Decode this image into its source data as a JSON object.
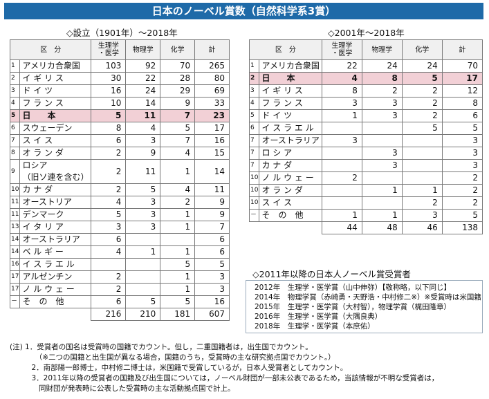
{
  "title": "日本のノーベル賞数（自然科学系3賞）",
  "left": {
    "subtitle": "◇設立（1901年）〜2018年",
    "headers": [
      "区　分",
      "生理学\n・医学",
      "物理学",
      "化学",
      "計"
    ],
    "rows": [
      {
        "rank": "1",
        "name": "アメリカ合衆国",
        "v": [
          "103",
          "92",
          "70",
          "265"
        ]
      },
      {
        "rank": "2",
        "name": "イ ギ リ ス",
        "v": [
          "30",
          "22",
          "28",
          "80"
        ]
      },
      {
        "rank": "3",
        "name": "ド イ ツ",
        "v": [
          "16",
          "24",
          "29",
          "69"
        ]
      },
      {
        "rank": "4",
        "name": "フ ラ ン ス",
        "v": [
          "10",
          "14",
          "9",
          "33"
        ]
      },
      {
        "rank": "5",
        "name": "日　　本",
        "v": [
          "5",
          "11",
          "7",
          "23"
        ],
        "jp": true
      },
      {
        "rank": "6",
        "name": "スウェーデン",
        "v": [
          "8",
          "4",
          "5",
          "17"
        ]
      },
      {
        "rank": "7",
        "name": "ス イ ス",
        "v": [
          "6",
          "3",
          "7",
          "16"
        ]
      },
      {
        "rank": "8",
        "name": "オ ラ ン ダ",
        "v": [
          "2",
          "9",
          "4",
          "15"
        ]
      },
      {
        "rank": "9",
        "name": "ロシア\n（旧ソ連を含む）",
        "v": [
          "2",
          "11",
          "1",
          "14"
        ]
      },
      {
        "rank": "10",
        "name": "カ ナ ダ",
        "v": [
          "2",
          "5",
          "4",
          "11"
        ]
      },
      {
        "rank": "11",
        "name": "オーストリア",
        "v": [
          "4",
          "3",
          "2",
          "9"
        ]
      },
      {
        "rank": "11",
        "name": "デンマーク",
        "v": [
          "5",
          "3",
          "1",
          "9"
        ]
      },
      {
        "rank": "13",
        "name": "イ タ リ ア",
        "v": [
          "3",
          "3",
          "1",
          "7"
        ]
      },
      {
        "rank": "14",
        "name": "オーストラリア",
        "v": [
          "6",
          "",
          "",
          "6"
        ]
      },
      {
        "rank": "14",
        "name": "ベ ル ギ ー",
        "v": [
          "4",
          "1",
          "1",
          "6"
        ]
      },
      {
        "rank": "16",
        "name": "イ ス ラ エ ル",
        "v": [
          "",
          "",
          "5",
          "5"
        ]
      },
      {
        "rank": "17",
        "name": "アルゼンチン",
        "v": [
          "2",
          "",
          "1",
          "3"
        ]
      },
      {
        "rank": "17",
        "name": "ノ ル ウ ェ ー",
        "v": [
          "2",
          "",
          "1",
          "3"
        ]
      },
      {
        "rank": "－",
        "name": "そ　の　他",
        "v": [
          "6",
          "5",
          "5",
          "16"
        ]
      }
    ],
    "totals": [
      "216",
      "210",
      "181",
      "607"
    ]
  },
  "right": {
    "subtitle": "◇2001年〜2018年",
    "headers": [
      "区　分",
      "生理学\n・医学",
      "物理学",
      "化学",
      "計"
    ],
    "rows": [
      {
        "rank": "1",
        "name": "アメリカ合衆国",
        "v": [
          "22",
          "24",
          "24",
          "70"
        ]
      },
      {
        "rank": "2",
        "name": "日　　本",
        "v": [
          "4",
          "8",
          "5",
          "17"
        ],
        "jp": true
      },
      {
        "rank": "3",
        "name": "イ ギ リ ス",
        "v": [
          "8",
          "2",
          "2",
          "12"
        ]
      },
      {
        "rank": "4",
        "name": "フ ラ ン ス",
        "v": [
          "3",
          "3",
          "2",
          "8"
        ]
      },
      {
        "rank": "5",
        "name": "ド イ ツ",
        "v": [
          "1",
          "3",
          "2",
          "6"
        ]
      },
      {
        "rank": "6",
        "name": "イ ス ラ エ ル",
        "v": [
          "",
          "",
          "5",
          "5"
        ]
      },
      {
        "rank": "7",
        "name": "オーストラリア",
        "v": [
          "3",
          "",
          "",
          "3"
        ]
      },
      {
        "rank": "7",
        "name": "ロ シ ア",
        "v": [
          "",
          "3",
          "",
          "3"
        ]
      },
      {
        "rank": "7",
        "name": "カ ナ ダ",
        "v": [
          "",
          "3",
          "",
          "3"
        ]
      },
      {
        "rank": "10",
        "name": "ノ ル ウ ェ ー",
        "v": [
          "2",
          "",
          "",
          "2"
        ]
      },
      {
        "rank": "10",
        "name": "オ ラ ン ダ",
        "v": [
          "",
          "1",
          "1",
          "2"
        ]
      },
      {
        "rank": "10",
        "name": "ス イ ス",
        "v": [
          "",
          "",
          "2",
          "2"
        ]
      },
      {
        "rank": "－",
        "name": "そ　の　他",
        "v": [
          "1",
          "1",
          "3",
          "5"
        ]
      }
    ],
    "totals": [
      "44",
      "48",
      "46",
      "138"
    ]
  },
  "recent": {
    "subtitle": "◇2011年以降の日本人ノーベル賞受賞者",
    "lines": [
      "2012年　生理学・医学賞（山中伸弥）【敬称略，以下同じ】",
      "2014年　物理学賞（赤崎勇・天野浩・中村修二※）※受賞時は米国籍",
      "2015年　生理学・医学賞（大村智），物理学賞（梶田隆章）",
      "2016年　生理学・医学賞（大隅良典）",
      "2018年　生理学・医学賞（本庶佑）"
    ]
  },
  "notes": [
    "(注) 1．受賞者の国名は受賞時の国籍でカウント。但し，二重国籍者は，出生国でカウント。",
    "　　　　（※二つの国籍と出生国が異なる場合，国籍のうち，受賞時の主な研究拠点国でカウント。）",
    "　　　2．南部陽一郎博士，中村修二博士は，米国籍で受賞しているが，日本人受賞者としてカウント。",
    "　　　3．2011年以降の受賞者の国籍及び出生国については，ノーベル財団が一部未公表であるため，当該情報が不明な受賞者は，",
    "　　　　同財団が発表時に公表した受賞時の主な活動拠点国で計上。"
  ]
}
